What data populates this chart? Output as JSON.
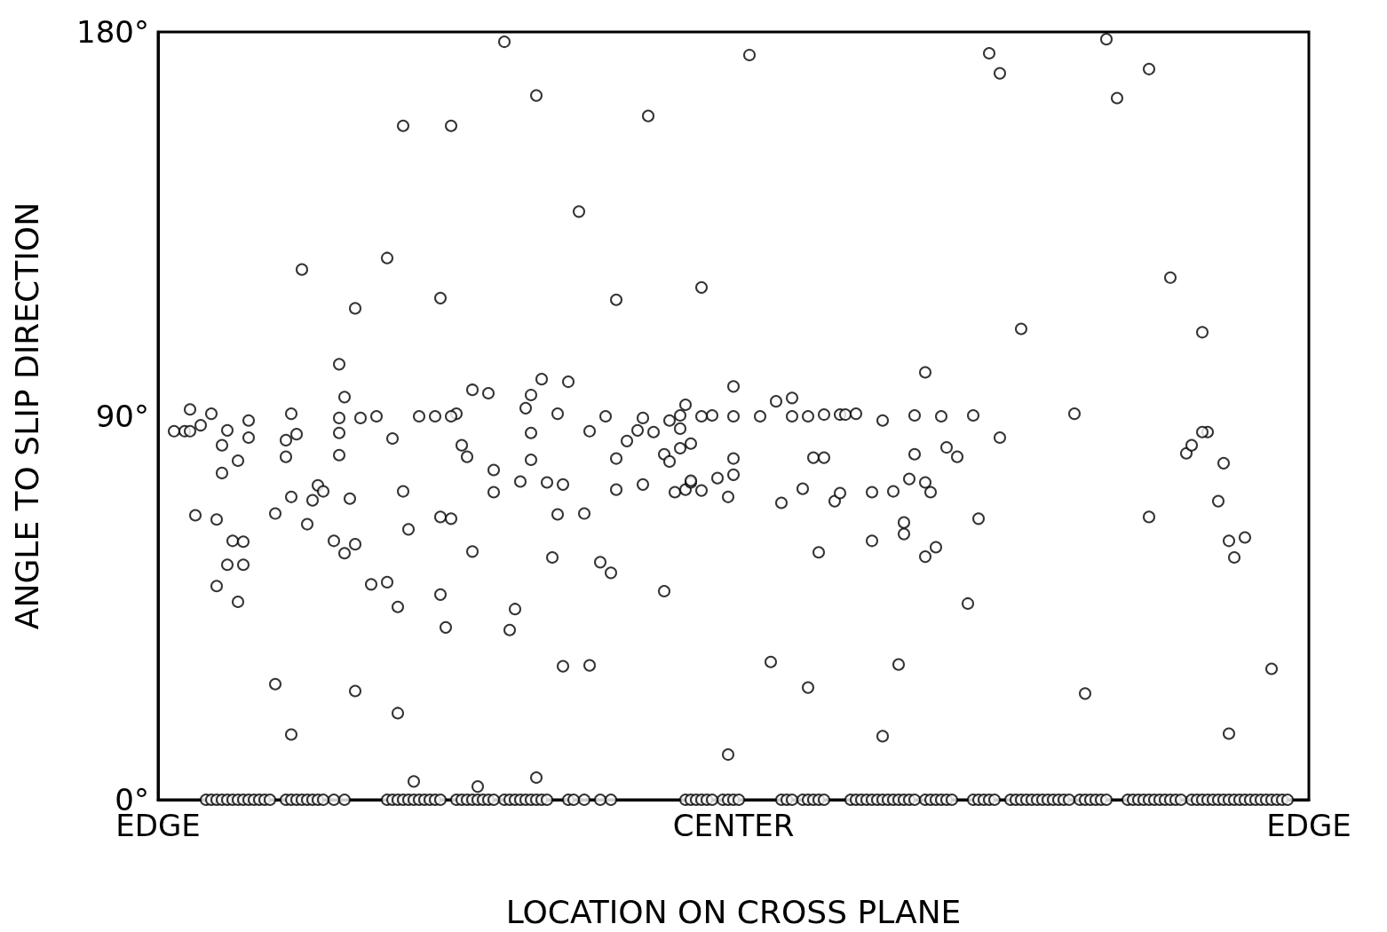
{
  "chart_data": {
    "type": "scatter",
    "xlabel": "LOCATION ON CROSS PLANE",
    "ylabel": "ANGLE TO SLIP DIRECTION",
    "categories": [
      "EDGE",
      null,
      null,
      null,
      null,
      null,
      null,
      null,
      null,
      null,
      null,
      null,
      null,
      null,
      null,
      null,
      null,
      null,
      null,
      null,
      null,
      null,
      null,
      null,
      null,
      null,
      null,
      null,
      null,
      null,
      null,
      null,
      null,
      null,
      null,
      null,
      null,
      null,
      null,
      null,
      null,
      null,
      null,
      null,
      null,
      null,
      null,
      null,
      null,
      null,
      null,
      null,
      null,
      null,
      null,
      null,
      null,
      null,
      null,
      null,
      null,
      null,
      null,
      null,
      null,
      null,
      null,
      null,
      null,
      null,
      null,
      null,
      null,
      null,
      null,
      null,
      null,
      null,
      null,
      null,
      null,
      null,
      null,
      null,
      null,
      null,
      null,
      null,
      null,
      null,
      null,
      null,
      null,
      null,
      null,
      null,
      null,
      null,
      null,
      null,
      null,
      null,
      null,
      null,
      null,
      null,
      null,
      null,
      "CENTER",
      null,
      null,
      null,
      null,
      null,
      null,
      null,
      null,
      null,
      null,
      null,
      null,
      null,
      null,
      null,
      null,
      null,
      null,
      null,
      null,
      null,
      null,
      null,
      null,
      null,
      null,
      null,
      null,
      null,
      null,
      null,
      null,
      null,
      null,
      null,
      null,
      null,
      null,
      null,
      null,
      null,
      null,
      null,
      null,
      null,
      null,
      null,
      null,
      null,
      null,
      null,
      null,
      null,
      null,
      null,
      null,
      null,
      null,
      null,
      null,
      null,
      null,
      null,
      null,
      null,
      null,
      null,
      null,
      null,
      null,
      null,
      null,
      null,
      null,
      null,
      null,
      null,
      null,
      null,
      null,
      null,
      null,
      null,
      null,
      null,
      null,
      null,
      null,
      null,
      null,
      null,
      null,
      null,
      null,
      null,
      null,
      null,
      null,
      null,
      null,
      null,
      null,
      null,
      null,
      null,
      null,
      null,
      "EDGE"
    ],
    "ylim": [
      0,
      180
    ],
    "yticks": [
      {
        "value": 0,
        "label": "0°"
      },
      {
        "value": 90,
        "label": "90°"
      },
      {
        "value": 180,
        "label": "180°"
      }
    ],
    "grid": false,
    "marker": "circle",
    "series": [
      {
        "color": "#000000",
        "values": [
          null,
          null,
          null,
          null,
          null,
          null,
          null,
          null,
          null,
          0,
          0,
          0,
          0,
          0,
          0,
          0,
          0,
          0,
          0,
          0,
          0,
          0,
          null,
          null,
          0,
          0,
          0,
          0,
          0,
          0,
          0,
          0,
          null,
          0,
          null,
          0,
          null,
          null,
          null,
          null,
          null,
          null,
          null,
          0,
          0,
          0,
          0,
          0,
          0,
          0,
          0,
          0,
          0,
          0,
          null,
          null,
          0,
          0,
          0,
          0,
          0,
          0,
          0,
          0,
          null,
          0,
          0,
          0,
          0,
          0,
          0,
          0,
          0,
          0,
          null,
          null,
          null,
          0,
          0,
          null,
          0,
          null,
          null,
          0,
          null,
          0,
          null,
          null,
          null,
          null,
          null,
          null,
          null,
          null,
          null,
          null,
          null,
          null,
          null,
          0,
          0,
          0,
          0,
          0,
          0,
          null,
          0,
          0,
          0,
          0,
          null,
          null,
          null,
          null,
          null,
          null,
          null,
          0,
          0,
          0,
          null,
          0,
          0,
          0,
          0,
          0,
          null,
          null,
          null,
          null,
          0,
          0,
          0,
          0,
          0,
          0,
          0,
          0,
          0,
          0,
          0,
          0,
          0,
          null,
          0,
          0,
          0,
          0,
          0,
          0,
          null,
          null,
          null,
          0,
          0,
          0,
          0,
          0,
          null,
          null,
          0,
          0,
          0,
          0,
          0,
          0,
          0,
          0,
          0,
          0,
          0,
          0,
          null,
          0,
          0,
          0,
          0,
          0,
          0,
          null,
          null,
          null,
          0,
          0,
          0,
          0,
          0,
          0,
          0,
          0,
          0,
          0,
          0,
          null,
          0,
          0,
          0,
          0,
          0,
          0,
          0,
          0,
          0,
          0,
          0,
          0,
          0,
          0,
          0,
          0,
          0,
          0,
          0,
          null,
          null,
          null,
          null
        ]
      },
      {
        "color": "#000000",
        "values": [
          null,
          null,
          null,
          86.4,
          null,
          86.4,
          86.4,
          66.7,
          87.8,
          null,
          90.5,
          65.7,
          83.1,
          86.6,
          60.7,
          46.4,
          60.5,
          84.9,
          null,
          null,
          null,
          null,
          27.1,
          null,
          84.3,
          15.3,
          85.7,
          124.3,
          64.6,
          70.2,
          73.7,
          72.3,
          null,
          60.7,
          80.8,
          57.8,
          70.6,
          59.9,
          89.5,
          null,
          50.5,
          89.9,
          null,
          51.0,
          84.7,
          45.2,
          158.0,
          63.4,
          4.3,
          89.9,
          null,
          null,
          89.9,
          66.3,
          40.4,
          65.9,
          90.5,
          83.1,
          80.4,
          58.2,
          3.1,
          null,
          95.3,
          72.1,
          null,
          177.7,
          39.8,
          44.7,
          74.6,
          91.8,
          94.9,
          165.1,
          98.6,
          74.4,
          56.8,
          90.5,
          31.3,
          98.0,
          null,
          137.9,
          67.1,
          86.4,
          null,
          55.7,
          89.9,
          53.2,
          72.7,
          null,
          84.1,
          null,
          86.6,
          73.9,
          160.3,
          86.2,
          null,
          81.0,
          79.3,
          72.1,
          87.0,
          92.6,
          83.5,
          null,
          120.1,
          null,
          90.1,
          75.4,
          null,
          71.0,
          96.9,
          null,
          null,
          174.6,
          null,
          89.9,
          null,
          32.3,
          93.4,
          69.6,
          null,
          94.2,
          null,
          72.9,
          89.9,
          80.2,
          58.0,
          80.2,
          null,
          70.0,
          90.3,
          90.3,
          null,
          90.5,
          null,
          null,
          72.1,
          null,
          88.9,
          null,
          72.3,
          31.7,
          65.0,
          75.2,
          81.0,
          null,
          100.2,
          72.1,
          59.2,
          89.9,
          82.6,
          null,
          80.4,
          null,
          46.0,
          90.1,
          65.9,
          null,
          175.0,
          null,
          84.9,
          null,
          null,
          null,
          110.4,
          null,
          null,
          null,
          null,
          null,
          null,
          null,
          null,
          null,
          90.5,
          null,
          24.9,
          null,
          null,
          null,
          178.3,
          null,
          164.5,
          null,
          null,
          null,
          null,
          null,
          171.3,
          null,
          null,
          null,
          122.4,
          null,
          null,
          81.2,
          83.1,
          null,
          109.6,
          86.2,
          null,
          70.0,
          78.9,
          60.7,
          56.8,
          null,
          61.5,
          null,
          null,
          null,
          null,
          30.7,
          null,
          null,
          null,
          null,
          null,
          null,
          null
        ]
      },
      {
        "color": "#000000",
        "values": [
          null,
          null,
          null,
          null,
          null,
          null,
          91.5,
          null,
          null,
          null,
          null,
          50.1,
          76.6,
          55.1,
          null,
          79.5,
          55.1,
          88.9,
          null,
          null,
          null,
          null,
          67.1,
          null,
          80.4,
          90.5,
          null,
          null,
          null,
          null,
          null,
          null,
          null,
          null,
          86.0,
          94.4,
          null,
          115.2,
          null,
          null,
          null,
          null,
          null,
          127.0,
          null,
          20.3,
          72.3,
          null,
          null,
          null,
          null,
          null,
          null,
          48.1,
          null,
          158.0,
          null,
          null,
          null,
          96.1,
          null,
          null,
          null,
          77.3,
          null,
          null,
          null,
          null,
          null,
          null,
          79.7,
          5.2,
          null,
          null,
          null,
          66.9,
          73.9,
          null,
          null,
          null,
          null,
          31.5,
          null,
          null,
          null,
          null,
          80.0,
          null,
          null,
          null,
          null,
          89.5,
          null,
          null,
          null,
          48.9,
          88.9,
          null,
          82.4,
          72.7,
          74.4,
          null,
          89.9,
          null,
          null,
          null,
          null,
          10.6,
          76.2,
          null,
          null,
          null,
          null,
          null,
          null,
          null,
          null,
          null,
          null,
          89.9,
          null,
          null,
          26.3,
          null,
          null,
          90.3,
          null,
          null,
          71.9,
          null,
          null,
          null,
          null,
          null,
          60.7,
          null,
          14.9,
          null,
          null,
          null,
          62.3,
          null,
          90.1,
          null,
          74.4,
          null,
          null,
          null,
          null,
          null,
          null,
          null,
          null,
          null,
          null,
          null,
          null,
          null,
          170.3,
          null,
          null,
          null,
          null,
          null,
          null,
          null,
          null,
          null,
          null,
          null,
          null,
          null,
          null,
          null,
          null,
          null,
          null,
          null,
          null,
          null,
          null,
          null,
          null,
          null,
          null,
          null,
          66.3,
          null,
          null,
          null,
          null,
          null,
          null,
          null,
          null,
          null,
          86.2,
          null,
          null,
          null,
          null,
          15.5,
          null,
          null,
          null,
          null,
          null,
          null,
          null,
          null,
          null,
          null,
          null,
          null,
          null,
          null,
          null
        ]
      },
      {
        "color": "#000000",
        "values": [
          null,
          null,
          null,
          null,
          null,
          null,
          null,
          null,
          null,
          null,
          null,
          null,
          null,
          null,
          null,
          null,
          null,
          null,
          null,
          null,
          null,
          null,
          null,
          null,
          null,
          71.0,
          null,
          null,
          null,
          null,
          null,
          null,
          null,
          null,
          102.1,
          null,
          null,
          25.5,
          null,
          null,
          null,
          null,
          null,
          null,
          null,
          null,
          null,
          null,
          null,
          null,
          null,
          null,
          null,
          117.6,
          null,
          89.9,
          null,
          null,
          null,
          null,
          null,
          null,
          null,
          null,
          null,
          null,
          null,
          null,
          null,
          null,
          86.0,
          null,
          null,
          null,
          null,
          null,
          null,
          null,
          null,
          null,
          null,
          null,
          null,
          null,
          null,
          null,
          117.2,
          null,
          null,
          null,
          null,
          null,
          null,
          null,
          null,
          null,
          null,
          null,
          90.1,
          null,
          74.8,
          null,
          72.5,
          null,
          null,
          null,
          null,
          null,
          80.0,
          null,
          null,
          null,
          null,
          null,
          null,
          null,
          null,
          null,
          null,
          null,
          null,
          null,
          null,
          null,
          null,
          null,
          null,
          null,
          null,
          null,
          null,
          null,
          null,
          null,
          null,
          null,
          null,
          null,
          null,
          null,
          null,
          null,
          null,
          null,
          57.0,
          null,
          null,
          null,
          null,
          null,
          null,
          null,
          null,
          null,
          null,
          null,
          null,
          null,
          null,
          null,
          null,
          null,
          null,
          null,
          null,
          null,
          null,
          null,
          null,
          null,
          null,
          null,
          null,
          null,
          null,
          null,
          null,
          null,
          null,
          null,
          null,
          null,
          null,
          null,
          null,
          null,
          null,
          null,
          null,
          null,
          null,
          null,
          null,
          null,
          null,
          null,
          null,
          null,
          null,
          null,
          null,
          null,
          null,
          null,
          null,
          null,
          null,
          null,
          null,
          null,
          null,
          null,
          null,
          null,
          null,
          null,
          null
        ]
      },
      {
        "color": "#000000",
        "values": [
          null,
          null,
          null,
          null,
          null,
          null,
          null,
          null,
          null,
          null,
          null,
          null,
          null,
          null,
          null,
          null,
          null,
          null,
          null,
          null,
          null,
          null,
          null,
          null,
          null,
          null,
          null,
          null,
          null,
          null,
          null,
          null,
          null,
          null,
          89.5,
          null,
          null,
          null,
          null,
          null,
          null,
          null,
          null,
          null,
          null,
          null,
          null,
          null,
          null,
          null,
          null,
          null,
          null,
          null,
          null,
          null,
          null,
          null,
          null,
          null,
          null,
          null,
          null,
          null,
          null,
          null,
          null,
          null,
          null,
          null,
          null,
          null,
          null,
          null,
          null,
          null,
          null,
          null,
          null,
          null,
          null,
          null,
          null,
          null,
          null,
          null,
          null,
          null,
          null,
          null,
          null,
          null,
          null,
          null,
          null,
          null,
          null,
          null,
          null,
          null,
          null,
          null,
          null,
          null,
          null,
          null,
          null,
          null,
          89.9,
          null,
          null,
          null,
          null,
          null,
          null,
          null,
          null,
          null,
          null,
          null,
          null,
          null,
          null,
          null,
          null,
          null,
          null,
          null,
          null,
          null,
          null,
          null,
          null,
          null,
          null,
          null,
          null,
          null,
          null,
          null,
          null,
          null,
          null,
          null,
          null,
          null,
          null,
          null,
          null,
          null,
          null,
          null,
          null,
          null,
          null,
          null,
          null,
          null,
          null,
          null,
          null,
          null,
          null,
          null,
          null,
          null,
          null,
          null,
          null,
          null,
          null,
          null,
          null,
          null,
          null,
          null,
          null,
          null,
          null,
          null,
          null,
          null,
          null,
          null,
          null,
          null,
          null,
          null,
          null,
          null,
          null,
          null,
          null,
          null,
          null,
          null,
          null,
          null,
          null,
          null,
          null,
          null,
          null,
          null,
          null,
          null,
          null,
          null,
          null,
          null,
          null,
          null,
          null,
          null,
          null,
          null,
          null
        ]
      }
    ]
  }
}
